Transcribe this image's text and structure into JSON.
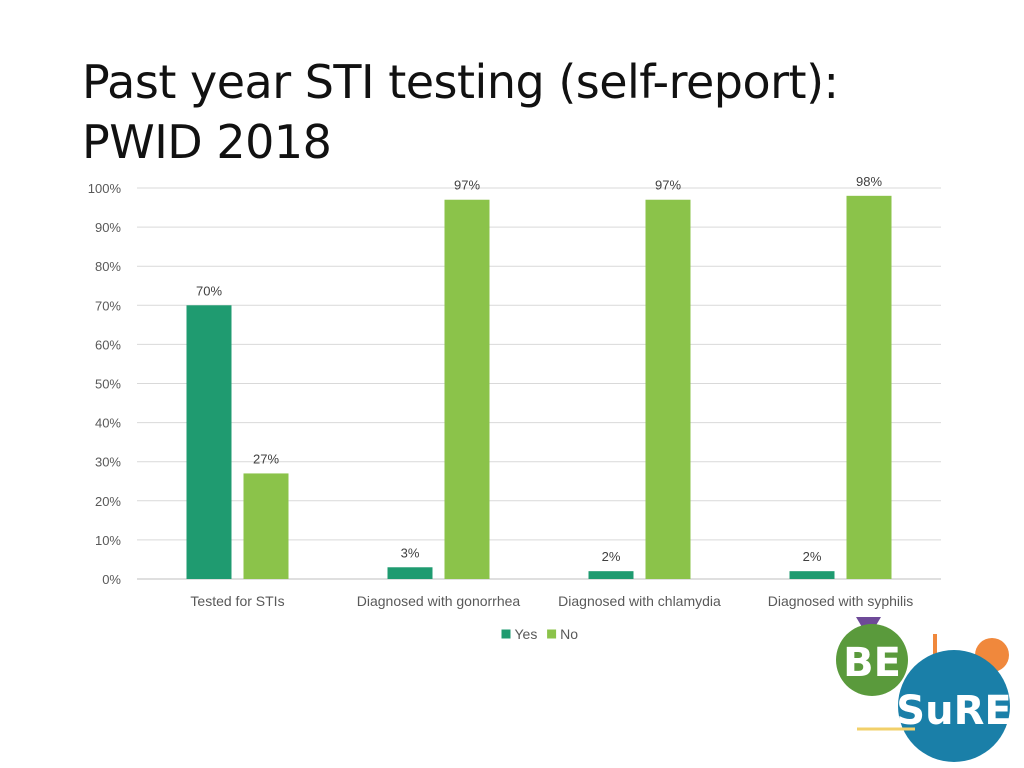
{
  "slide": {
    "title_line1": "Past year STI testing (self-report):",
    "title_line2": "PWID 2018"
  },
  "logo": {
    "text_be": "BE",
    "text_sure": "SuRE",
    "colors": {
      "green_circle": "#5a9a3c",
      "blue_circle": "#1a7fa8",
      "orange_dot": "#f0883c",
      "purple_triangle": "#6e4a98",
      "yellow_line": "#f2d06a"
    }
  },
  "chart_data": {
    "type": "bar",
    "categories": [
      "Tested for STIs",
      "Diagnosed with gonorrhea",
      "Diagnosed with chlamydia",
      "Diagnosed with syphilis"
    ],
    "series": [
      {
        "name": "Yes",
        "color": "#1f9b70",
        "values": [
          70,
          3,
          2,
          2
        ],
        "labels": [
          "70%",
          "3%",
          "2%",
          "2%"
        ]
      },
      {
        "name": "No",
        "color": "#8bc34a",
        "values": [
          27,
          97,
          97,
          98
        ],
        "labels": [
          "27%",
          "97%",
          "97%",
          "98%"
        ]
      }
    ],
    "ylim": [
      0,
      100
    ],
    "yticks": [
      0,
      10,
      20,
      30,
      40,
      50,
      60,
      70,
      80,
      90,
      100
    ],
    "ytick_labels": [
      "0%",
      "10%",
      "20%",
      "30%",
      "40%",
      "50%",
      "60%",
      "70%",
      "80%",
      "90%",
      "100%"
    ],
    "grid": true,
    "legend_position": "bottom"
  }
}
